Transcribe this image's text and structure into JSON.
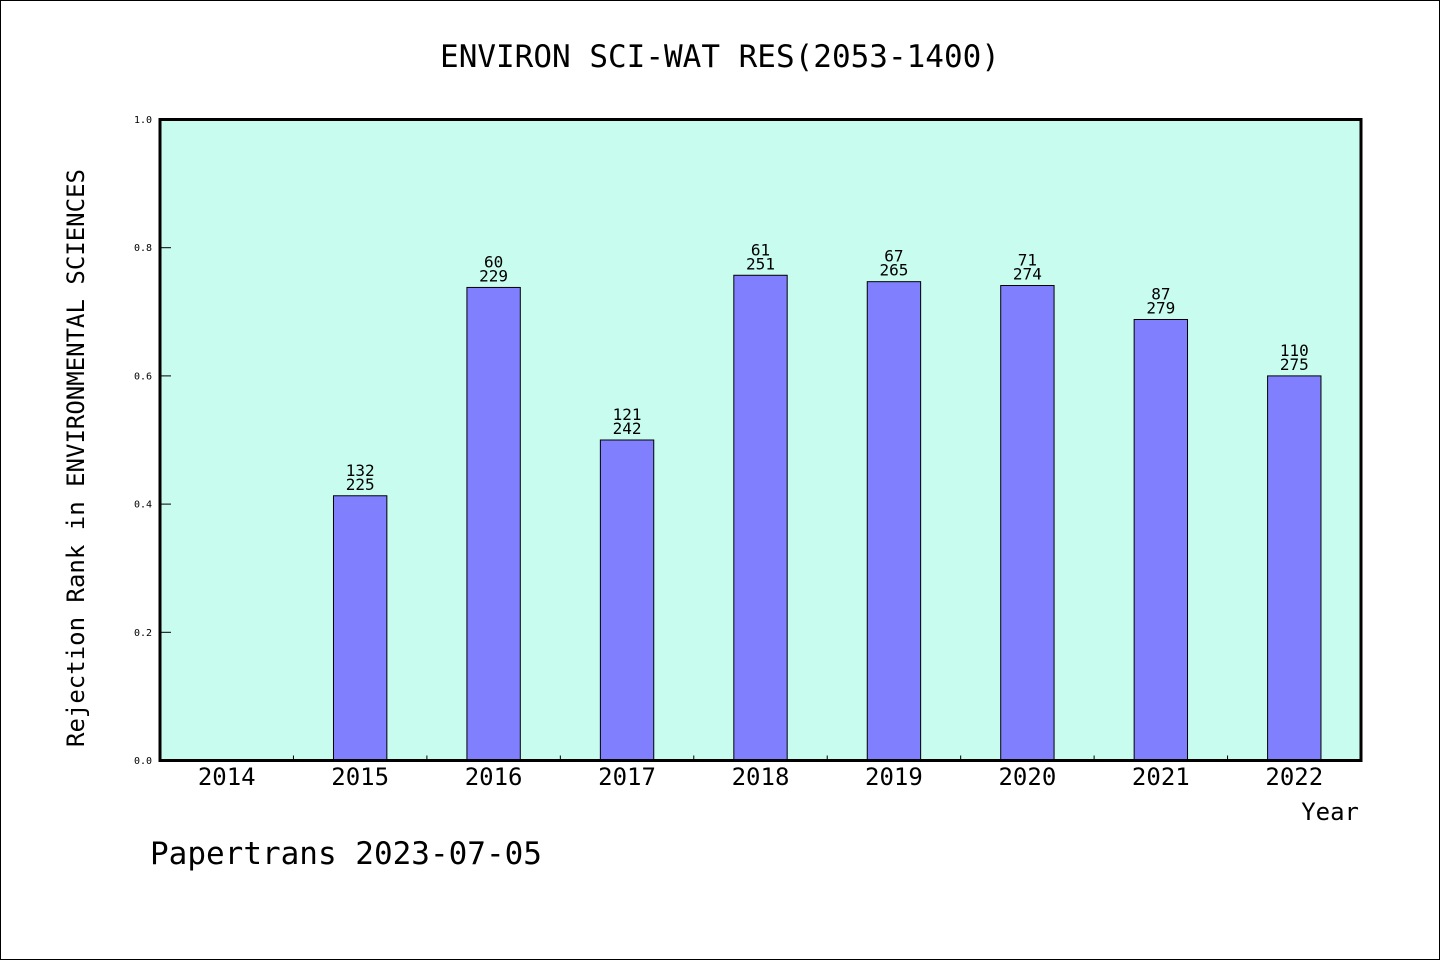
{
  "chart_data": {
    "type": "bar",
    "title": "ENVIRON SCI-WAT RES(2053-1400)",
    "xlabel": "Year",
    "ylabel": "Rejection Rank in ENVIRONMENTAL SCIENCES",
    "ylim": [
      0,
      1.0
    ],
    "yticks": [
      "0.0",
      "0.2",
      "0.4",
      "0.6",
      "0.8",
      "1.0"
    ],
    "categories": [
      "2014",
      "2015",
      "2016",
      "2017",
      "2018",
      "2019",
      "2020",
      "2021",
      "2022"
    ],
    "values": [
      null,
      0.413,
      0.738,
      0.5,
      0.757,
      0.747,
      0.741,
      0.688,
      0.6
    ],
    "rank_labels": [
      "",
      "132",
      "60",
      "121",
      "61",
      "67",
      "71",
      "87",
      "110"
    ],
    "total_labels": [
      "",
      "225",
      "229",
      "242",
      "251",
      "265",
      "274",
      "279",
      "275"
    ],
    "grid": false,
    "colors": {
      "plot_background": "#c8fcee",
      "bar_fill": "#8080ff",
      "bar_stroke": "#000000"
    }
  },
  "footer": "Papertrans 2023-07-05"
}
